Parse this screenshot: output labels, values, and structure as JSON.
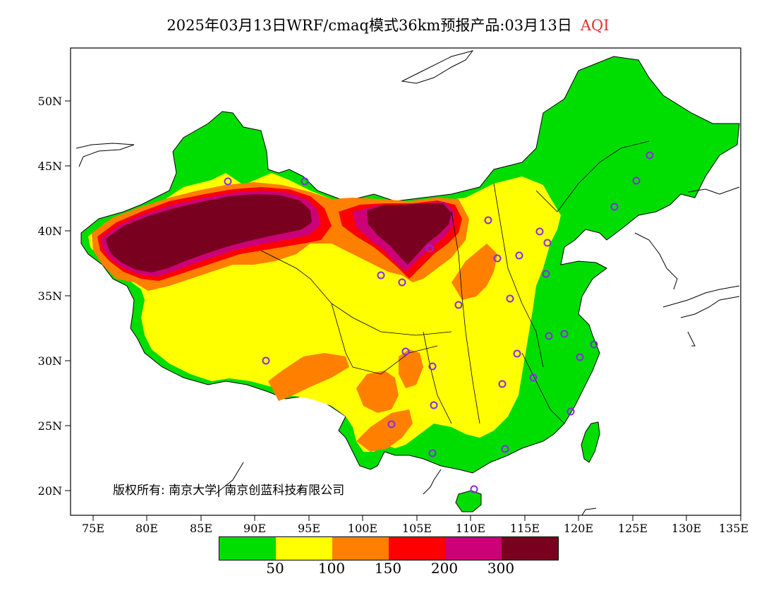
{
  "title": {
    "main": "2025年03月13日WRF/cmaq模式36km预报产品:03月13日",
    "variable": "AQI"
  },
  "axes": {
    "lat_labels": [
      "50N",
      "45N",
      "40N",
      "35N",
      "30N",
      "25N",
      "20N"
    ],
    "lon_labels": [
      "75E",
      "80E",
      "85E",
      "90E",
      "95E",
      "100E",
      "105E",
      "110E",
      "115E",
      "120E",
      "125E",
      "130E",
      "135E"
    ]
  },
  "legend": {
    "colors": [
      "#00dd00",
      "#ffff00",
      "#ff8000",
      "#ff0000",
      "#cc0077",
      "#7a0020"
    ],
    "thresholds": [
      "50",
      "100",
      "150",
      "200",
      "300"
    ]
  },
  "copyright": "版权所有: 南京大学| 南京创蓝科技有限公司",
  "colors": {
    "background": "#ffffff",
    "marker": "#8a2be2",
    "title_accent": "#e03030"
  }
}
